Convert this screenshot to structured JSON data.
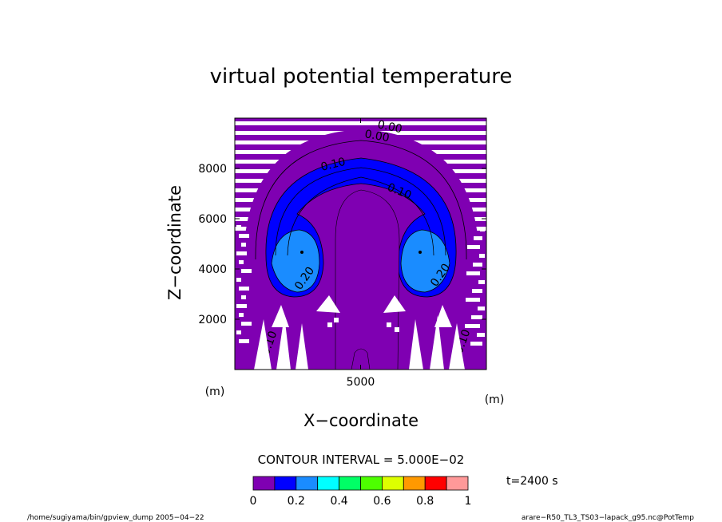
{
  "chart_data": {
    "type": "heatmap",
    "title": "virtual potential temperature",
    "xlabel": "X−coordinate",
    "ylabel": "Z−coordinate",
    "x_unit": "(m)",
    "z_unit": "(m)",
    "xlim": [
      0,
      10000
    ],
    "ylim": [
      0,
      10000
    ],
    "x_ticks": [
      "5000"
    ],
    "y_ticks": [
      "2000",
      "4000",
      "6000",
      "8000"
    ],
    "contour_interval_text": "CONTOUR INTERVAL = 5.000E−02",
    "time_label": "t=2400 s",
    "contour_labels": [
      "0.00",
      "0.00",
      "0.10",
      "0.10",
      "0.20",
      "0.20",
      "0.10",
      "0.10"
    ],
    "colorbar": {
      "range": [
        0,
        1
      ],
      "tick_labels": [
        "0",
        "0.2",
        "0.4",
        "0.6",
        "0.8",
        "1"
      ],
      "colors": [
        "#7f00b2",
        "#0000ff",
        "#1a8cff",
        "#00ffff",
        "#00ff66",
        "#4dff00",
        "#ddff00",
        "#ff9900",
        "#ff0000",
        "#ff9999"
      ]
    },
    "footer_left": "/home/sugiyama/bin/gpview_dump  2005−04−22",
    "footer_right": "arare−R50_TL3_TS03−lapack_g95.nc@PotTemp"
  }
}
